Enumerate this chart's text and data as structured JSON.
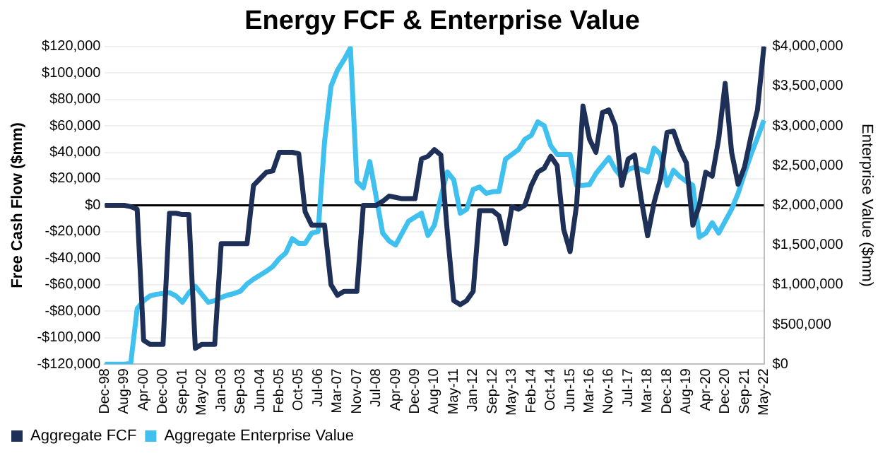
{
  "chart_data": {
    "type": "line",
    "title": "Energy FCF & Enterprise Value",
    "ylabel": "Free Cash Flow ($mm)",
    "y2label": "Enterprise Value ($mm)",
    "categories": [
      "Dec-98",
      null,
      null,
      "Aug-99",
      null,
      null,
      "Apr-00",
      null,
      null,
      "Dec-00",
      null,
      null,
      "Sep-01",
      null,
      null,
      "May-02",
      null,
      null,
      "Jan-03",
      null,
      null,
      "Sep-03",
      null,
      null,
      "Jun-04",
      null,
      null,
      "Feb-05",
      null,
      null,
      "Oct-05",
      null,
      null,
      "Jul-06",
      null,
      null,
      "Mar-07",
      null,
      null,
      "Nov-07",
      null,
      null,
      "Jul-08",
      null,
      null,
      "Apr-09",
      null,
      null,
      "Dec-09",
      null,
      null,
      "Aug-10",
      null,
      null,
      "May-11",
      null,
      null,
      "Jan-12",
      null,
      null,
      "Sep-12",
      null,
      null,
      "May-13",
      null,
      null,
      "Feb-14",
      null,
      null,
      "Oct-14",
      null,
      null,
      "Jun-15",
      null,
      null,
      "Mar-16",
      null,
      null,
      "Nov-16",
      null,
      null,
      "Jul-17",
      null,
      null,
      "Mar-18",
      null,
      null,
      "Dec-18",
      null,
      null,
      "Aug-19",
      null,
      null,
      "Apr-20",
      null,
      null,
      "Dec-20",
      null,
      null,
      "Sep-21",
      null,
      null,
      "May-22"
    ],
    "series": [
      {
        "name": "Aggregate FCF",
        "color": "#1f3058",
        "values": [
          0,
          0,
          0,
          0,
          -1000,
          -3000,
          -102000,
          -105000,
          -105000,
          -105000,
          -6000,
          -6000,
          -7000,
          -7000,
          -108000,
          -105000,
          -105000,
          -105000,
          -29000,
          -29000,
          -29000,
          -29000,
          -29000,
          15000,
          20000,
          25000,
          26000,
          40000,
          40000,
          40000,
          39000,
          -5000,
          -15000,
          -15000,
          -15000,
          -60000,
          -68000,
          -65000,
          -65000,
          -65000,
          0,
          0,
          0,
          3000,
          7000,
          6000,
          5000,
          5000,
          5000,
          35000,
          37000,
          42000,
          38000,
          -20000,
          -72000,
          -75000,
          -72000,
          -65000,
          -4000,
          -4000,
          -4000,
          -8000,
          -29000,
          -1000,
          -3000,
          0,
          15000,
          25000,
          28000,
          37000,
          30000,
          -18000,
          -35000,
          0,
          75000,
          50000,
          40000,
          70000,
          72000,
          60000,
          15000,
          35000,
          38000,
          5000,
          -23000,
          2000,
          20000,
          55000,
          56000,
          42000,
          32000,
          -15000,
          0,
          25000,
          22000,
          50000,
          92000,
          40000,
          16000,
          29000,
          52000,
          72000,
          120000
        ]
      },
      {
        "name": "Aggregate Enterprise Value",
        "color": "#3fc0ee",
        "axis": "y2",
        "values": [
          0,
          0,
          0,
          0,
          10000,
          700000,
          800000,
          860000,
          880000,
          890000,
          900000,
          860000,
          780000,
          900000,
          980000,
          880000,
          780000,
          800000,
          840000,
          870000,
          890000,
          920000,
          1010000,
          1070000,
          1120000,
          1170000,
          1230000,
          1330000,
          1400000,
          1580000,
          1520000,
          1520000,
          1650000,
          1670000,
          2800000,
          3500000,
          3700000,
          3830000,
          3980000,
          2300000,
          2220000,
          2550000,
          2100000,
          1650000,
          1550000,
          1500000,
          1650000,
          1800000,
          1850000,
          1900000,
          1620000,
          1750000,
          2100000,
          2420000,
          2320000,
          1900000,
          1950000,
          2200000,
          2230000,
          2150000,
          2170000,
          2175000,
          2580000,
          2640000,
          2700000,
          2830000,
          2880000,
          3050000,
          3000000,
          2750000,
          2640000,
          2640000,
          2640000,
          2250000,
          2250000,
          2260000,
          2400000,
          2500000,
          2600000,
          2450000,
          2350000,
          2450000,
          2480000,
          2450000,
          2420000,
          2720000,
          2640000,
          2250000,
          2440000,
          2360000,
          2300000,
          2250000,
          1600000,
          1650000,
          1780000,
          1650000,
          1800000,
          1950000,
          2150000,
          2400000,
          2640000,
          2850000,
          3070000
        ]
      }
    ],
    "ylim": [
      -120000,
      120000
    ],
    "yticks": [
      {
        "value": -120000,
        "label": "-$120,000"
      },
      {
        "value": -100000,
        "label": "-$100,000"
      },
      {
        "value": -80000,
        "label": "-$80,000"
      },
      {
        "value": -60000,
        "label": "-$60,000"
      },
      {
        "value": -40000,
        "label": "-$40,000"
      },
      {
        "value": -20000,
        "label": "-$20,000"
      },
      {
        "value": 0,
        "label": "$0"
      },
      {
        "value": 20000,
        "label": "$20,000"
      },
      {
        "value": 40000,
        "label": "$40,000"
      },
      {
        "value": 60000,
        "label": "$60,000"
      },
      {
        "value": 80000,
        "label": "$80,000"
      },
      {
        "value": 100000,
        "label": "$100,000"
      },
      {
        "value": 120000,
        "label": "$120,000"
      }
    ],
    "y2lim": [
      0,
      4000000
    ],
    "y2ticks": [
      {
        "value": 0,
        "label": "$0"
      },
      {
        "value": 500000,
        "label": "$500,000"
      },
      {
        "value": 1000000,
        "label": "$1,000,000"
      },
      {
        "value": 1500000,
        "label": "$1,500,000"
      },
      {
        "value": 2000000,
        "label": "$2,000,000"
      },
      {
        "value": 2500000,
        "label": "$2,500,000"
      },
      {
        "value": 3000000,
        "label": "$3,000,000"
      },
      {
        "value": 3500000,
        "label": "$3,500,000"
      },
      {
        "value": 4000000,
        "label": "$4,000,000"
      }
    ],
    "ref_lines": [
      {
        "axis": "y",
        "value": 0,
        "color": "#000000"
      }
    ],
    "grid": "y",
    "legend": "bottom left",
    "marker": "none",
    "line_style": "solid"
  }
}
